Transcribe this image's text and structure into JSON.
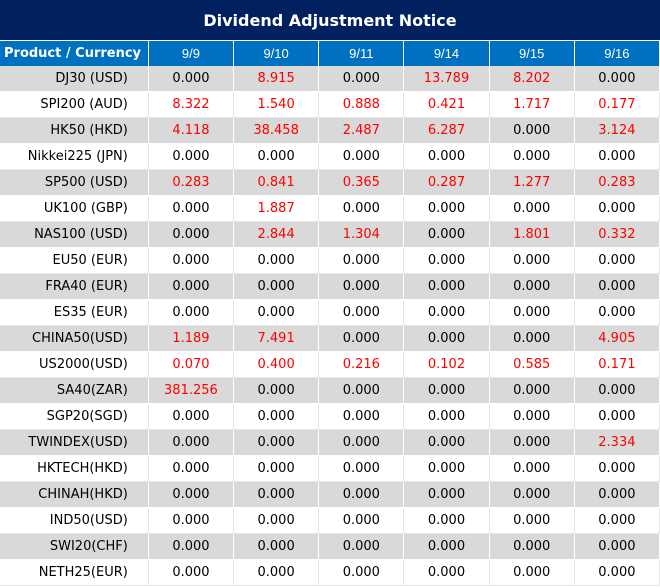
{
  "title": "Dividend Adjustment Notice",
  "header": {
    "product_label": "Product / Currency",
    "dates": [
      "9/9",
      "9/10",
      "9/11",
      "9/14",
      "9/15",
      "9/16"
    ]
  },
  "colors": {
    "title_bg": "#002060",
    "header_bg": "#0070C0",
    "stripe_bg": "#D9D9D9",
    "positive_value": "#FF0000",
    "zero_value": "#000000"
  },
  "rows": [
    {
      "name": "DJ30 (USD)",
      "values": [
        "0.000",
        "8.915",
        "0.000",
        "13.789",
        "8.202",
        "0.000"
      ]
    },
    {
      "name": "SPI200 (AUD)",
      "values": [
        "8.322",
        "1.540",
        "0.888",
        "0.421",
        "1.717",
        "0.177"
      ]
    },
    {
      "name": "HK50 (HKD)",
      "values": [
        "4.118",
        "38.458",
        "2.487",
        "6.287",
        "0.000",
        "3.124"
      ]
    },
    {
      "name": "Nikkei225 (JPN)",
      "values": [
        "0.000",
        "0.000",
        "0.000",
        "0.000",
        "0.000",
        "0.000"
      ]
    },
    {
      "name": "SP500 (USD)",
      "values": [
        "0.283",
        "0.841",
        "0.365",
        "0.287",
        "1.277",
        "0.283"
      ]
    },
    {
      "name": "UK100 (GBP)",
      "values": [
        "0.000",
        "1.887",
        "0.000",
        "0.000",
        "0.000",
        "0.000"
      ]
    },
    {
      "name": "NAS100 (USD)",
      "values": [
        "0.000",
        "2.844",
        "1.304",
        "0.000",
        "1.801",
        "0.332"
      ]
    },
    {
      "name": "EU50 (EUR)",
      "values": [
        "0.000",
        "0.000",
        "0.000",
        "0.000",
        "0.000",
        "0.000"
      ]
    },
    {
      "name": "FRA40 (EUR)",
      "values": [
        "0.000",
        "0.000",
        "0.000",
        "0.000",
        "0.000",
        "0.000"
      ]
    },
    {
      "name": "ES35 (EUR)",
      "values": [
        "0.000",
        "0.000",
        "0.000",
        "0.000",
        "0.000",
        "0.000"
      ]
    },
    {
      "name": "CHINA50(USD)",
      "values": [
        "1.189",
        "7.491",
        "0.000",
        "0.000",
        "0.000",
        "4.905"
      ]
    },
    {
      "name": "US2000(USD)",
      "values": [
        "0.070",
        "0.400",
        "0.216",
        "0.102",
        "0.585",
        "0.171"
      ]
    },
    {
      "name": "SA40(ZAR)",
      "values": [
        "381.256",
        "0.000",
        "0.000",
        "0.000",
        "0.000",
        "0.000"
      ]
    },
    {
      "name": "SGP20(SGD)",
      "values": [
        "0.000",
        "0.000",
        "0.000",
        "0.000",
        "0.000",
        "0.000"
      ]
    },
    {
      "name": "TWINDEX(USD)",
      "values": [
        "0.000",
        "0.000",
        "0.000",
        "0.000",
        "0.000",
        "2.334"
      ]
    },
    {
      "name": "HKTECH(HKD)",
      "values": [
        "0.000",
        "0.000",
        "0.000",
        "0.000",
        "0.000",
        "0.000"
      ]
    },
    {
      "name": "CHINAH(HKD)",
      "values": [
        "0.000",
        "0.000",
        "0.000",
        "0.000",
        "0.000",
        "0.000"
      ]
    },
    {
      "name": "IND50(USD)",
      "values": [
        "0.000",
        "0.000",
        "0.000",
        "0.000",
        "0.000",
        "0.000"
      ]
    },
    {
      "name": "SWI20(CHF)",
      "values": [
        "0.000",
        "0.000",
        "0.000",
        "0.000",
        "0.000",
        "0.000"
      ]
    },
    {
      "name": "NETH25(EUR)",
      "values": [
        "0.000",
        "0.000",
        "0.000",
        "0.000",
        "0.000",
        "0.000"
      ]
    }
  ]
}
